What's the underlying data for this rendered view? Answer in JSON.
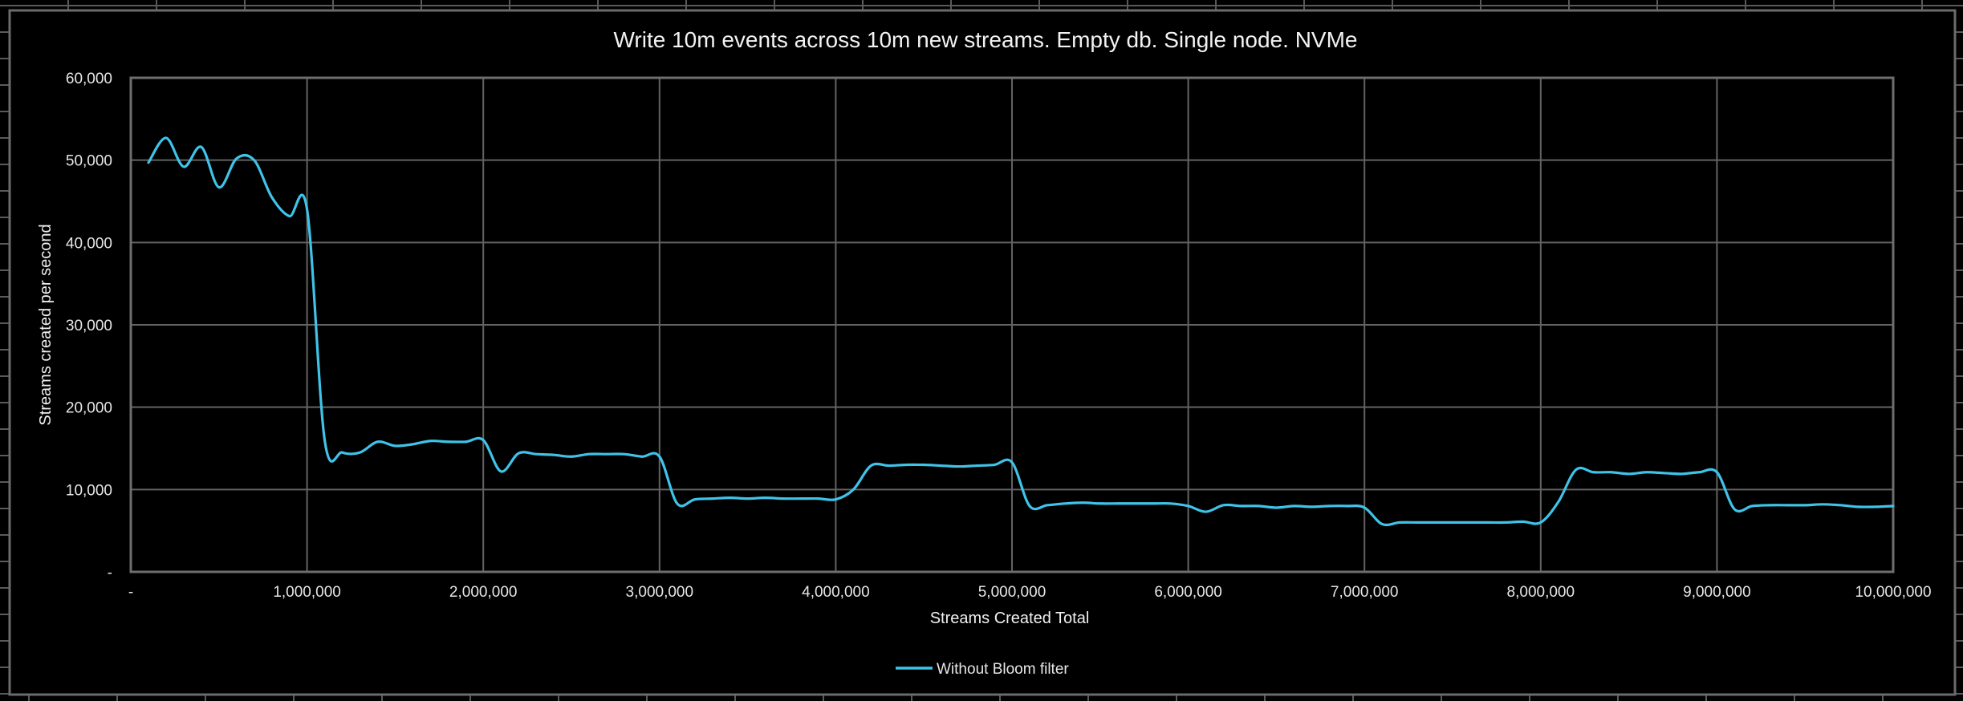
{
  "chart_data": {
    "type": "line",
    "title": "Write 10m events across 10m new streams. Empty db. Single node. NVMe",
    "xlabel": "Streams Created Total",
    "ylabel": "Streams created per second",
    "xlim": [
      0,
      10000000
    ],
    "ylim": [
      0,
      60000
    ],
    "x_ticks": [
      0,
      1000000,
      2000000,
      3000000,
      4000000,
      5000000,
      6000000,
      7000000,
      8000000,
      9000000,
      10000000
    ],
    "x_tick_labels": [
      "-",
      "1,000,000",
      "2,000,000",
      "3,000,000",
      "4,000,000",
      "5,000,000",
      "6,000,000",
      "7,000,000",
      "8,000,000",
      "9,000,000",
      "10,000,000"
    ],
    "y_ticks": [
      0,
      10000,
      20000,
      30000,
      40000,
      50000,
      60000
    ],
    "y_tick_labels": [
      "-",
      "10,000",
      "20,000",
      "30,000",
      "40,000",
      "50,000",
      "60,000"
    ],
    "grid": true,
    "smooth": true,
    "legend_position": "bottom",
    "x": [
      100000,
      200000,
      300000,
      400000,
      500000,
      600000,
      700000,
      800000,
      900000,
      1000000,
      1100000,
      1200000,
      1300000,
      1400000,
      1500000,
      1600000,
      1700000,
      1800000,
      1900000,
      2000000,
      2100000,
      2200000,
      2300000,
      2400000,
      2500000,
      2600000,
      2700000,
      2800000,
      2900000,
      3000000,
      3100000,
      3200000,
      3300000,
      3400000,
      3500000,
      3600000,
      3700000,
      3800000,
      3900000,
      4000000,
      4100000,
      4200000,
      4300000,
      4400000,
      4500000,
      4600000,
      4700000,
      4800000,
      4900000,
      5000000,
      5100000,
      5200000,
      5300000,
      5400000,
      5500000,
      5600000,
      5700000,
      5800000,
      5900000,
      6000000,
      6100000,
      6200000,
      6300000,
      6400000,
      6500000,
      6600000,
      6700000,
      6800000,
      6900000,
      7000000,
      7100000,
      7200000,
      7300000,
      7400000,
      7500000,
      7600000,
      7700000,
      7800000,
      7900000,
      8000000,
      8100000,
      8200000,
      8300000,
      8400000,
      8500000,
      8600000,
      8700000,
      8800000,
      8900000,
      9000000,
      9100000,
      9200000,
      9300000,
      9400000,
      9500000,
      9600000,
      9700000,
      9800000,
      9900000,
      10000000
    ],
    "series": [
      {
        "name": "Without Bloom filter",
        "color": "#3fc3e8",
        "values": [
          49700,
          52700,
          49200,
          51600,
          46700,
          50200,
          50000,
          45500,
          43200,
          44000,
          16000,
          14500,
          14500,
          15800,
          15300,
          15500,
          15900,
          15800,
          15800,
          16000,
          12200,
          14400,
          14300,
          14200,
          14000,
          14300,
          14300,
          14300,
          14000,
          14000,
          8300,
          8800,
          8900,
          9000,
          8900,
          9000,
          8900,
          8900,
          8900,
          8800,
          10000,
          12900,
          12900,
          13000,
          13000,
          12900,
          12800,
          12900,
          13000,
          13300,
          8000,
          8100,
          8300,
          8400,
          8300,
          8300,
          8300,
          8300,
          8300,
          8000,
          7300,
          8100,
          8000,
          8000,
          7800,
          8000,
          7900,
          8000,
          8000,
          7800,
          5800,
          6000,
          6000,
          6000,
          6000,
          6000,
          6000,
          6000,
          6100,
          6000,
          8500,
          12400,
          12100,
          12100,
          11900,
          12100,
          12000,
          11900,
          12100,
          12100,
          7600,
          8000,
          8100,
          8100,
          8100,
          8200,
          8100,
          7900,
          7900,
          8000
        ]
      }
    ]
  },
  "colors": {
    "background": "#000000",
    "gridline": "#636363",
    "text": "#e6e6e6",
    "series_line": "#3fc3e8"
  }
}
